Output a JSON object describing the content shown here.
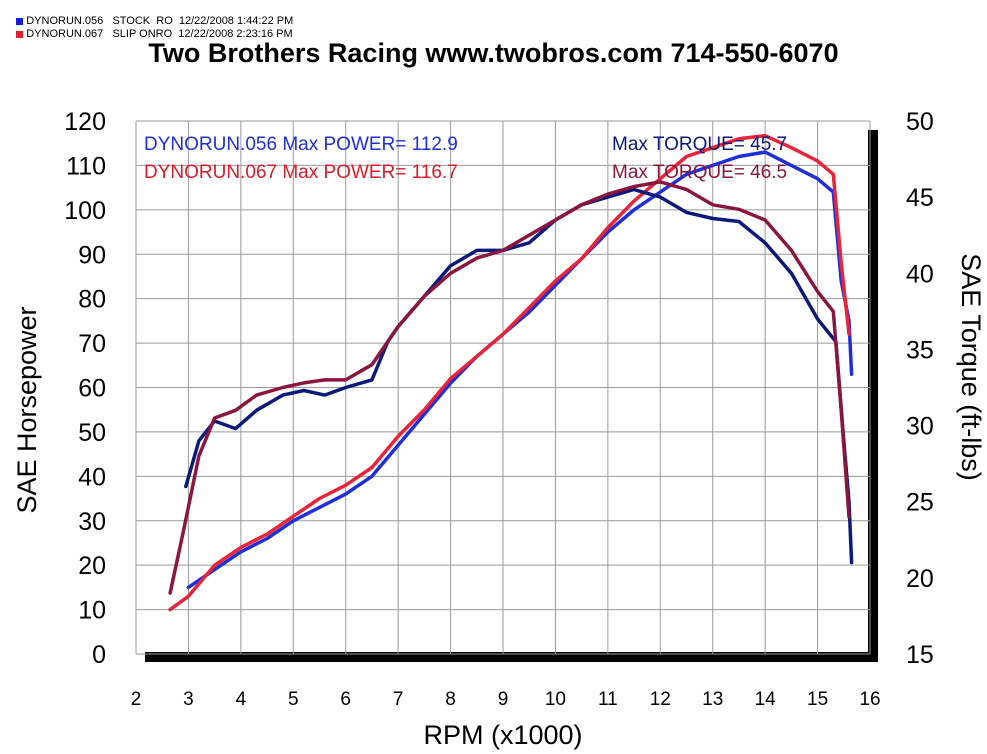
{
  "legend": [
    {
      "run": "DYNORUN.056",
      "label": "STOCK  RO",
      "date": "12/22/2008 1:44:22 PM",
      "color": "#1a1adb"
    },
    {
      "run": "DYNORUN.067",
      "label": "SLIP ONRO",
      "date": "12/22/2008 2:23:16 PM",
      "color": "#e02030"
    }
  ],
  "title": "Two Brothers Racing  www.twobros.com  714-550-6070",
  "summary": {
    "run1_power": "DYNORUN.056  Max POWER= 112.9",
    "run2_power": "DYNORUN.067  Max POWER= 116.7",
    "run1_torque": "Max TORQUE= 45.7",
    "run2_torque": "Max TORQUE= 46.5"
  },
  "colors": {
    "power_056": "#1f2fd8",
    "power_067": "#e8243a",
    "torque_056": "#0a1a7a",
    "torque_067": "#8a1640",
    "text_056": "#1f2fd8",
    "text_067": "#d81c2c",
    "text_torque_056": "#0a1a7a",
    "text_torque_067": "#8a1640"
  },
  "chart_data": {
    "type": "line",
    "xlabel": "RPM (x1000)",
    "ylabel": "SAE Horsepower",
    "y2label": "SAE Torque (ft-lbs)",
    "xlim": [
      2,
      16
    ],
    "ylim": [
      0,
      120
    ],
    "y2lim": [
      15,
      50
    ],
    "xticks": [
      "2",
      "3",
      "4",
      "5",
      "6",
      "7",
      "8",
      "9",
      "10",
      "11",
      "12",
      "13",
      "14",
      "15",
      "16"
    ],
    "yticks": [
      "0",
      "10",
      "20",
      "30",
      "40",
      "50",
      "60",
      "70",
      "80",
      "90",
      "100",
      "110",
      "120"
    ],
    "y2ticks": [
      "15",
      "20",
      "25",
      "30",
      "35",
      "40",
      "45",
      "50"
    ],
    "grid": true,
    "series": [
      {
        "name": "DYNORUN.056",
        "quantity": "power",
        "axis": "left",
        "x": [
          3.0,
          3.5,
          4.0,
          4.5,
          5.0,
          5.5,
          6.0,
          6.5,
          7.0,
          7.5,
          8.0,
          8.5,
          9.0,
          9.5,
          10.0,
          10.5,
          11.0,
          11.5,
          12.0,
          12.5,
          13.0,
          13.5,
          14.0,
          14.5,
          15.0,
          15.3,
          15.45,
          15.6,
          15.65
        ],
        "y": [
          15,
          19,
          23,
          26,
          30,
          33,
          36,
          40,
          47,
          54,
          61,
          67,
          72,
          77,
          83,
          89,
          95,
          100,
          104,
          108,
          110,
          112,
          113,
          110,
          107,
          104,
          84,
          75,
          63
        ]
      },
      {
        "name": "DYNORUN.067",
        "quantity": "power",
        "axis": "left",
        "x": [
          2.65,
          3.0,
          3.5,
          4.0,
          4.5,
          5.0,
          5.5,
          6.0,
          6.5,
          7.0,
          7.5,
          8.0,
          8.5,
          9.0,
          9.5,
          10.0,
          10.5,
          11.0,
          11.5,
          12.0,
          12.5,
          13.0,
          13.5,
          14.0,
          14.5,
          15.0,
          15.3,
          15.45,
          15.6
        ],
        "y": [
          10,
          13,
          20,
          24,
          27,
          31,
          35,
          38,
          42,
          49,
          55,
          62,
          67,
          72,
          78,
          84,
          89,
          96,
          102,
          107,
          112,
          114,
          116,
          116.7,
          114,
          111,
          108,
          88,
          72
        ]
      },
      {
        "name": "DYNORUN.056",
        "quantity": "torque",
        "axis": "right",
        "x": [
          2.95,
          3.2,
          3.5,
          3.9,
          4.3,
          4.8,
          5.2,
          5.6,
          6.0,
          6.5,
          6.8,
          7.0,
          7.5,
          8.0,
          8.5,
          9.0,
          9.5,
          10.0,
          10.5,
          11.0,
          11.5,
          12.0,
          12.5,
          13.0,
          13.5,
          14.0,
          14.5,
          15.0,
          15.35,
          15.5,
          15.6,
          15.65
        ],
        "y": [
          26,
          29,
          30.3,
          29.8,
          31,
          32,
          32.3,
          32,
          32.5,
          33,
          35.5,
          36.5,
          38.5,
          40.5,
          41.5,
          41.5,
          42,
          43.5,
          44.5,
          45,
          45.5,
          45,
          44,
          43.6,
          43.4,
          42,
          40,
          37,
          35.5,
          29,
          25,
          21
        ]
      },
      {
        "name": "DYNORUN.067",
        "quantity": "torque",
        "axis": "right",
        "x": [
          2.65,
          2.9,
          3.2,
          3.5,
          3.9,
          4.3,
          4.8,
          5.2,
          5.6,
          6.0,
          6.5,
          7.0,
          7.5,
          8.0,
          8.5,
          9.0,
          9.5,
          10.0,
          10.5,
          11.0,
          11.5,
          12.0,
          12.5,
          13.0,
          13.5,
          14.0,
          14.5,
          15.0,
          15.3,
          15.45,
          15.6
        ],
        "y": [
          19,
          23,
          28,
          30.5,
          31,
          32,
          32.5,
          32.8,
          33,
          33,
          34,
          36.5,
          38.5,
          40,
          41,
          41.5,
          42.5,
          43.5,
          44.5,
          45.2,
          45.7,
          46,
          45.5,
          44.5,
          44.2,
          43.5,
          41.5,
          38.8,
          37.5,
          31,
          24
        ]
      }
    ]
  }
}
